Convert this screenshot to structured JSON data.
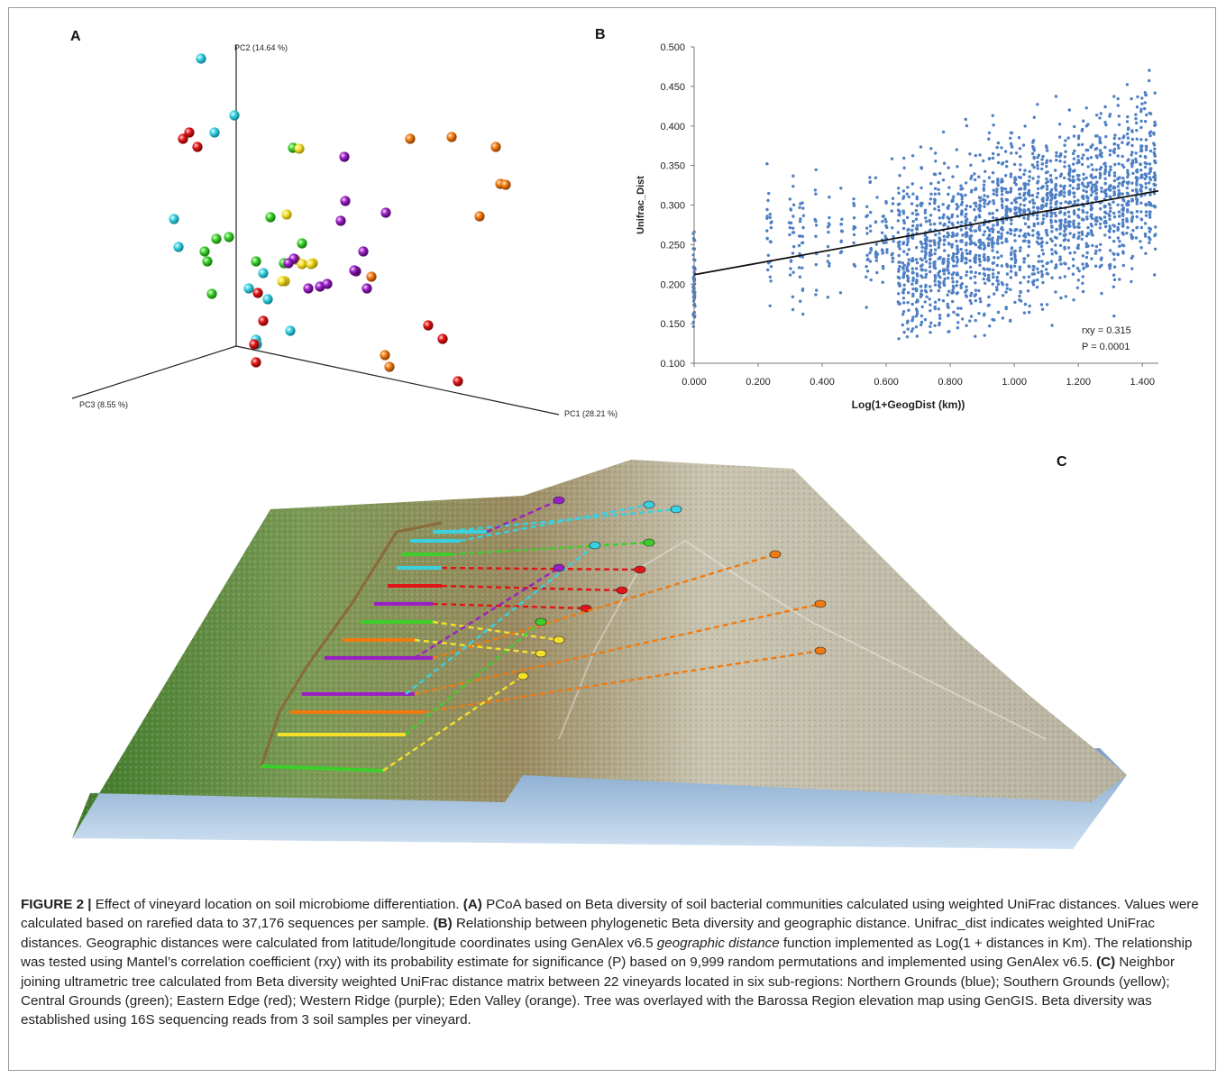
{
  "panels": {
    "a": {
      "letter": "A",
      "axes": {
        "pc1": "PC1 (28.21 %)",
        "pc2": "PC2 (14.64 %)",
        "pc3": "PC3 (8.55 %)"
      },
      "colors": {
        "blue": "#3ad0e0",
        "yellow": "#f4e02c",
        "green": "#3ccf2a",
        "red": "#e01616",
        "purple": "#9a1fc4",
        "orange": "#f07a10"
      }
    },
    "b": {
      "letter": "B"
    },
    "c": {
      "letter": "C"
    }
  },
  "chart_data": {
    "type": "scatter",
    "xlabel": "Log(1+GeogDist (km))",
    "ylabel": "Unifrac_Dist",
    "xlim": [
      0,
      1.45
    ],
    "ylim": [
      0.1,
      0.5
    ],
    "x_ticks": [
      "0.000",
      "0.200",
      "0.400",
      "0.600",
      "0.800",
      "1.000",
      "1.200",
      "1.400"
    ],
    "y_ticks": [
      "0.100",
      "0.150",
      "0.200",
      "0.250",
      "0.300",
      "0.350",
      "0.400",
      "0.450",
      "0.500"
    ],
    "trend_line": {
      "x": [
        0,
        1.45
      ],
      "y": [
        0.212,
        0.318
      ]
    },
    "annotations": [
      "rxy = 0.315",
      "P = 0.0001"
    ],
    "point_color": "#4f7fc4",
    "line_color": "#111111"
  },
  "caption": {
    "label": "FIGURE 2 |",
    "intro": " Effect of vineyard location on soil microbiome differentiation. ",
    "a_label": "(A)",
    "a_text": " PCoA based on Beta diversity of soil bacterial communities calculated using weighted UniFrac distances. Values were calculated based on rarefied data to 37,176 sequences per sample. ",
    "b_label": "(B)",
    "b_text_1": " Relationship between phylogenetic Beta diversity and geographic distance. Unifrac_dist indicates weighted UniFrac distances. Geographic distances were calculated from latitude/longitude coordinates using GenAlex v6.5 ",
    "b_italic": "geographic distance",
    "b_text_2": " function implemented as Log(1 + distances in Km). The relationship was tested using Mantel’s correlation coefficient (rxy) with its probability estimate for significance (P) based on 9,999 random permutations and implemented using GenAlex v6.5. ",
    "c_label": "(C)",
    "c_text": " Neighbor joining ultrametric tree calculated from Beta diversity weighted UniFrac distance matrix between 22 vineyards located in six sub-regions: Northern Grounds (blue); Southern Grounds (yellow); Central Grounds (green); Eastern Edge (red); Western Ridge (purple); Eden Valley (orange). Tree was overlayed with the Barossa Region elevation map using GenGIS. Beta diversity was established using 16S sequencing reads from 3 soil samples per vineyard."
  }
}
